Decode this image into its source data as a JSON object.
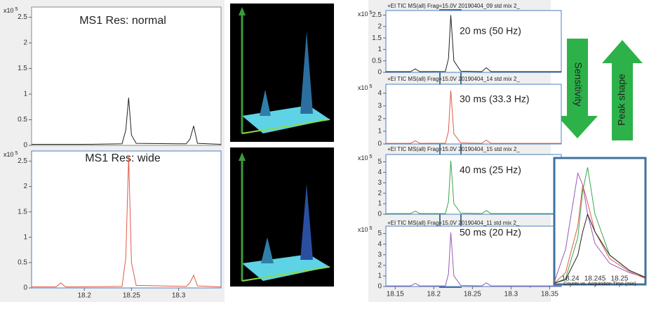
{
  "chart_data": [
    {
      "type": "line",
      "title": "MS1 Res: normal",
      "y_scale": {
        "base": "x10",
        "exponent": "5"
      },
      "x": [
        18.144,
        18.2,
        18.24,
        18.244,
        18.247,
        18.25,
        18.255,
        18.308,
        18.312,
        18.316,
        18.32,
        18.345
      ],
      "series": [
        {
          "color": "#222222",
          "values": [
            0.02,
            0.02,
            0.03,
            0.3,
            0.93,
            0.2,
            0.04,
            0.03,
            0.12,
            0.38,
            0.04,
            0.02
          ]
        }
      ],
      "xlim": [
        18.144,
        18.345
      ],
      "ylim": [
        0,
        2.7
      ],
      "yticks": [
        0,
        0.5,
        1,
        1.5,
        2,
        2.5
      ]
    },
    {
      "type": "line",
      "title": "MS1 Res: wide",
      "y_scale": {
        "base": "x10",
        "exponent": "5"
      },
      "x": [
        18.144,
        18.17,
        18.175,
        18.18,
        18.24,
        18.244,
        18.247,
        18.25,
        18.255,
        18.308,
        18.312,
        18.316,
        18.32,
        18.345
      ],
      "series": [
        {
          "color": "#e05a4a",
          "values": [
            0.02,
            0.02,
            0.1,
            0.02,
            0.03,
            0.6,
            2.6,
            0.5,
            0.05,
            0.03,
            0.1,
            0.25,
            0.04,
            0.02
          ]
        }
      ],
      "xlim": [
        18.144,
        18.345
      ],
      "ylim": [
        0,
        2.7
      ],
      "yticks": [
        0,
        0.5,
        1,
        1.5,
        2,
        2.5
      ],
      "xticks": [
        18.2,
        18.25,
        18.3
      ]
    },
    {
      "type": "line",
      "title": "+EI TIC MS(all) Frag=15.0V 20190404_09 std mix 2_",
      "label": "20 ms (50 Hz)",
      "y_scale": {
        "base": "x10",
        "exponent": "5"
      },
      "x": [
        18.138,
        18.17,
        18.176,
        18.182,
        18.215,
        18.219,
        18.222,
        18.226,
        18.235,
        18.262,
        18.268,
        18.274,
        18.365
      ],
      "series": [
        {
          "color": "#222222",
          "values": [
            0.03,
            0.03,
            0.15,
            0.03,
            0.04,
            0.6,
            2.5,
            0.5,
            0.05,
            0.03,
            0.2,
            0.03,
            0.03
          ]
        }
      ],
      "xlim": [
        18.138,
        18.365
      ],
      "ylim": [
        0,
        2.7
      ],
      "yticks": [
        0,
        0.5,
        1,
        1.5,
        2,
        2.5
      ]
    },
    {
      "type": "line",
      "title": "+EI TIC MS(all) Frag=15.0V 20190404_14 std mix 2_",
      "label": "30 ms (33.3 Hz)",
      "y_scale": {
        "base": "x10",
        "exponent": "5"
      },
      "x": [
        18.138,
        18.17,
        18.176,
        18.182,
        18.215,
        18.219,
        18.222,
        18.226,
        18.235,
        18.262,
        18.268,
        18.274,
        18.365
      ],
      "series": [
        {
          "color": "#e05a4a",
          "values": [
            0.05,
            0.05,
            0.25,
            0.05,
            0.06,
            1.0,
            4.2,
            0.8,
            0.08,
            0.05,
            0.3,
            0.05,
            0.05
          ]
        }
      ],
      "xlim": [
        18.138,
        18.365
      ],
      "ylim": [
        0,
        4.7
      ],
      "yticks": [
        0,
        1,
        2,
        3,
        4
      ]
    },
    {
      "type": "line",
      "title": "+EI TIC MS(all) Frag=15.0V 20190404_15 std mix 2_",
      "label": "40 ms (25 Hz)",
      "y_scale": {
        "base": "x10",
        "exponent": "5"
      },
      "x": [
        18.138,
        18.17,
        18.176,
        18.182,
        18.215,
        18.219,
        18.222,
        18.226,
        18.235,
        18.262,
        18.268,
        18.274,
        18.365
      ],
      "series": [
        {
          "color": "#3aa84a",
          "values": [
            0.06,
            0.06,
            0.3,
            0.06,
            0.07,
            1.2,
            5.1,
            1.0,
            0.1,
            0.06,
            0.35,
            0.06,
            0.06
          ]
        }
      ],
      "xlim": [
        18.138,
        18.365
      ],
      "ylim": [
        0,
        5.7
      ],
      "yticks": [
        0,
        1,
        2,
        3,
        4,
        5
      ]
    },
    {
      "type": "line",
      "title": "+EI TIC MS(all) Frag=15.0V 20190404_11 std mix 2_",
      "label": "50 ms (20 Hz)",
      "y_scale": {
        "base": "x10",
        "exponent": "5"
      },
      "x": [
        18.138,
        18.17,
        18.176,
        18.182,
        18.215,
        18.219,
        18.222,
        18.226,
        18.235,
        18.262,
        18.268,
        18.274,
        18.365
      ],
      "series": [
        {
          "color": "#9b59b6",
          "values": [
            0.06,
            0.06,
            0.3,
            0.06,
            0.07,
            1.2,
            5.1,
            1.0,
            0.1,
            0.06,
            0.35,
            0.06,
            0.06
          ]
        }
      ],
      "xlim": [
        18.138,
        18.365
      ],
      "ylim": [
        0,
        5.7
      ],
      "yticks": [
        0,
        1,
        2,
        3,
        4,
        5
      ],
      "xticks": [
        18.15,
        18.2,
        18.25,
        18.3,
        18.35
      ]
    },
    {
      "type": "line",
      "xlabel": "Counts vs. Acquisition Time (min)",
      "x": [
        18.2367,
        18.239,
        18.2415,
        18.2425,
        18.2435,
        18.245,
        18.248,
        18.252,
        18.2553
      ],
      "series": [
        {
          "color": "#9b59b6",
          "values": [
            0.02,
            0.3,
            0.95,
            0.85,
            0.6,
            0.35,
            0.18,
            0.1,
            0.06
          ]
        },
        {
          "color": "#3aa84a",
          "values": [
            0.01,
            0.05,
            0.4,
            0.8,
            1.0,
            0.6,
            0.25,
            0.12,
            0.06
          ]
        },
        {
          "color": "#e05a4a",
          "values": [
            0.01,
            0.1,
            0.5,
            0.85,
            0.7,
            0.45,
            0.22,
            0.11,
            0.05
          ]
        },
        {
          "color": "#222222",
          "values": [
            0.01,
            0.04,
            0.25,
            0.45,
            0.6,
            0.45,
            0.25,
            0.12,
            0.06
          ]
        }
      ],
      "xlim": [
        18.2367,
        18.2553
      ],
      "ylim": [
        0,
        1.08
      ],
      "xticks": [
        18.24,
        18.245,
        18.25
      ]
    }
  ],
  "annotations": {
    "sensitivity": "Sensitivity",
    "peak_shape": "Peak shape"
  }
}
